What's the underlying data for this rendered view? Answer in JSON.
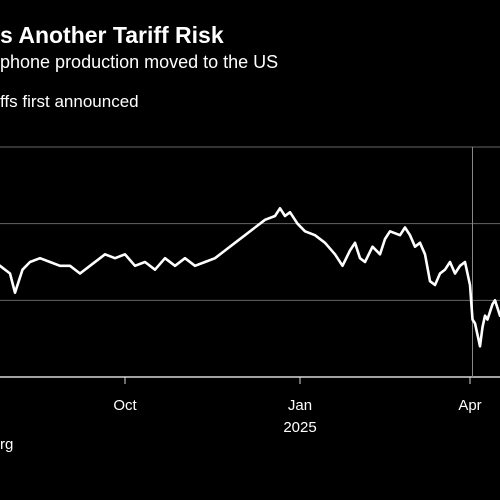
{
  "header": {
    "title": "s Another Tariff Risk",
    "subtitle": "phone production moved to the US",
    "annotation": "ffs first announced"
  },
  "footer": {
    "source": "rg"
  },
  "chart_data": {
    "type": "line",
    "title": "s Another Tariff Risk",
    "subtitle": "phone production moved to the US",
    "xlabel": "",
    "ylabel": "",
    "grid": true,
    "ylim": [
      0,
      3
    ],
    "gridlines": [
      0,
      1,
      2,
      3
    ],
    "x_ticks": [
      {
        "label": "Oct",
        "sublabel": "",
        "t": 0.25
      },
      {
        "label": "Jan",
        "sublabel": "2025",
        "t": 0.6
      },
      {
        "label": "Apr",
        "sublabel": "",
        "t": 0.94
      }
    ],
    "event_marker": {
      "label": "ffs first announced",
      "t": 0.945
    },
    "series": [
      {
        "name": "",
        "t": [
          0,
          0.02,
          0.03,
          0.045,
          0.06,
          0.08,
          0.1,
          0.12,
          0.14,
          0.16,
          0.18,
          0.2,
          0.21,
          0.23,
          0.25,
          0.27,
          0.29,
          0.31,
          0.33,
          0.35,
          0.37,
          0.39,
          0.41,
          0.43,
          0.45,
          0.47,
          0.49,
          0.51,
          0.53,
          0.55,
          0.56,
          0.57,
          0.58,
          0.595,
          0.61,
          0.63,
          0.65,
          0.67,
          0.685,
          0.7,
          0.71,
          0.72,
          0.73,
          0.745,
          0.76,
          0.77,
          0.78,
          0.8,
          0.81,
          0.82,
          0.83,
          0.84,
          0.85,
          0.86,
          0.87,
          0.88,
          0.89,
          0.9,
          0.91,
          0.92,
          0.93,
          0.94,
          0.945,
          0.95,
          0.955,
          0.96,
          0.965,
          0.97,
          0.975,
          0.98,
          0.985,
          0.99,
          1.0
        ],
        "values": [
          1.45,
          1.35,
          1.1,
          1.4,
          1.5,
          1.55,
          1.5,
          1.45,
          1.45,
          1.35,
          1.45,
          1.55,
          1.6,
          1.55,
          1.6,
          1.45,
          1.5,
          1.4,
          1.55,
          1.45,
          1.55,
          1.45,
          1.5,
          1.55,
          1.65,
          1.75,
          1.85,
          1.95,
          2.05,
          2.1,
          2.2,
          2.1,
          2.15,
          2.0,
          1.9,
          1.85,
          1.75,
          1.6,
          1.45,
          1.65,
          1.75,
          1.55,
          1.5,
          1.7,
          1.6,
          1.8,
          1.9,
          1.85,
          1.95,
          1.85,
          1.7,
          1.75,
          1.6,
          1.25,
          1.2,
          1.35,
          1.4,
          1.5,
          1.35,
          1.45,
          1.5,
          1.2,
          0.75,
          0.7,
          0.55,
          0.4,
          0.65,
          0.8,
          0.75,
          0.85,
          0.95,
          1.0,
          0.8
        ]
      }
    ]
  }
}
